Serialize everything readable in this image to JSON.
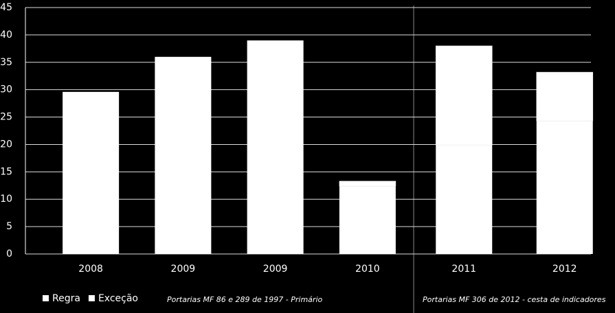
{
  "chart_data": {
    "type": "stacked-bar",
    "categories": [
      "2008",
      "2009",
      "2009",
      "2010",
      "2011",
      "2012"
    ],
    "series": [
      {
        "name": "Regra",
        "color": "#ffffff",
        "values": [
          29.6,
          36,
          39,
          12.4,
          19.9,
          24.3
        ]
      },
      {
        "name": "Exceção",
        "color": "#ffffff",
        "values": [
          0,
          0,
          0,
          0.9,
          18.1,
          8.9
        ]
      }
    ],
    "ylim": [
      0,
      45
    ],
    "yticks": [
      0,
      5,
      10,
      15,
      20,
      25,
      30,
      35,
      40,
      45
    ],
    "grid": true,
    "annotations": [
      "Portarias MF 86 e 289 de 1997 - Primário",
      "Portarias MF 306 de 2012 - cesta de indicadores"
    ]
  }
}
